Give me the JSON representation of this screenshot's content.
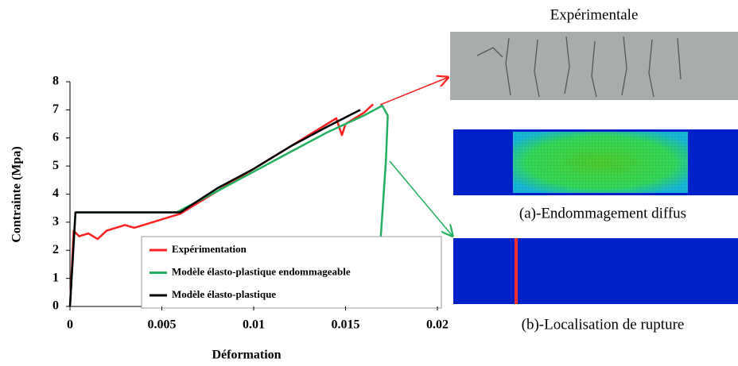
{
  "chart_data": {
    "type": "line",
    "xlabel": "Déformation",
    "ylabel": "Contrainte (Mpa)",
    "xlim": [
      0,
      0.02
    ],
    "ylim": [
      0,
      8
    ],
    "xticks": [
      0,
      0.005,
      0.01,
      0.015,
      0.02
    ],
    "yticks": [
      0,
      1,
      2,
      3,
      4,
      5,
      6,
      7,
      8
    ],
    "grid": false,
    "legend": "bottom-right",
    "series": [
      {
        "name": "Expérimentation",
        "color": "#ff2020",
        "x": [
          0,
          0.0002,
          0.0005,
          0.001,
          0.0015,
          0.002,
          0.0025,
          0.003,
          0.0035,
          0.004,
          0.005,
          0.0055,
          0.006,
          0.007,
          0.008,
          0.009,
          0.01,
          0.011,
          0.012,
          0.013,
          0.014,
          0.0145,
          0.0148,
          0.015,
          0.016,
          0.0165
        ],
        "values": [
          0,
          2.7,
          2.5,
          2.6,
          2.4,
          2.7,
          2.8,
          2.9,
          2.8,
          2.9,
          3.1,
          3.2,
          3.3,
          3.7,
          4.1,
          4.5,
          4.9,
          5.3,
          5.7,
          6.1,
          6.5,
          6.7,
          6.1,
          6.5,
          6.9,
          7.2
        ]
      },
      {
        "name": "Modèle élasto-plastique endommageable",
        "color": "#22b060",
        "x": [
          0,
          0.0003,
          0.0058,
          0.008,
          0.01,
          0.012,
          0.014,
          0.016,
          0.017,
          0.0173,
          0.0172,
          0.0169
        ],
        "values": [
          0,
          3.35,
          3.35,
          4.1,
          4.8,
          5.5,
          6.2,
          6.8,
          7.15,
          6.8,
          5.2,
          2.3
        ]
      },
      {
        "name": "Modèle élasto-plastique",
        "color": "#000000",
        "x": [
          0,
          0.0003,
          0.006,
          0.008,
          0.01,
          0.012,
          0.014,
          0.0158
        ],
        "values": [
          0,
          3.35,
          3.35,
          4.2,
          4.9,
          5.7,
          6.4,
          7.0
        ]
      }
    ]
  },
  "panels": {
    "experimental_title": "Expérimentale",
    "caption_a": "(a)-Endommagement diffus",
    "caption_b": "(b)-Localisation de rupture"
  }
}
